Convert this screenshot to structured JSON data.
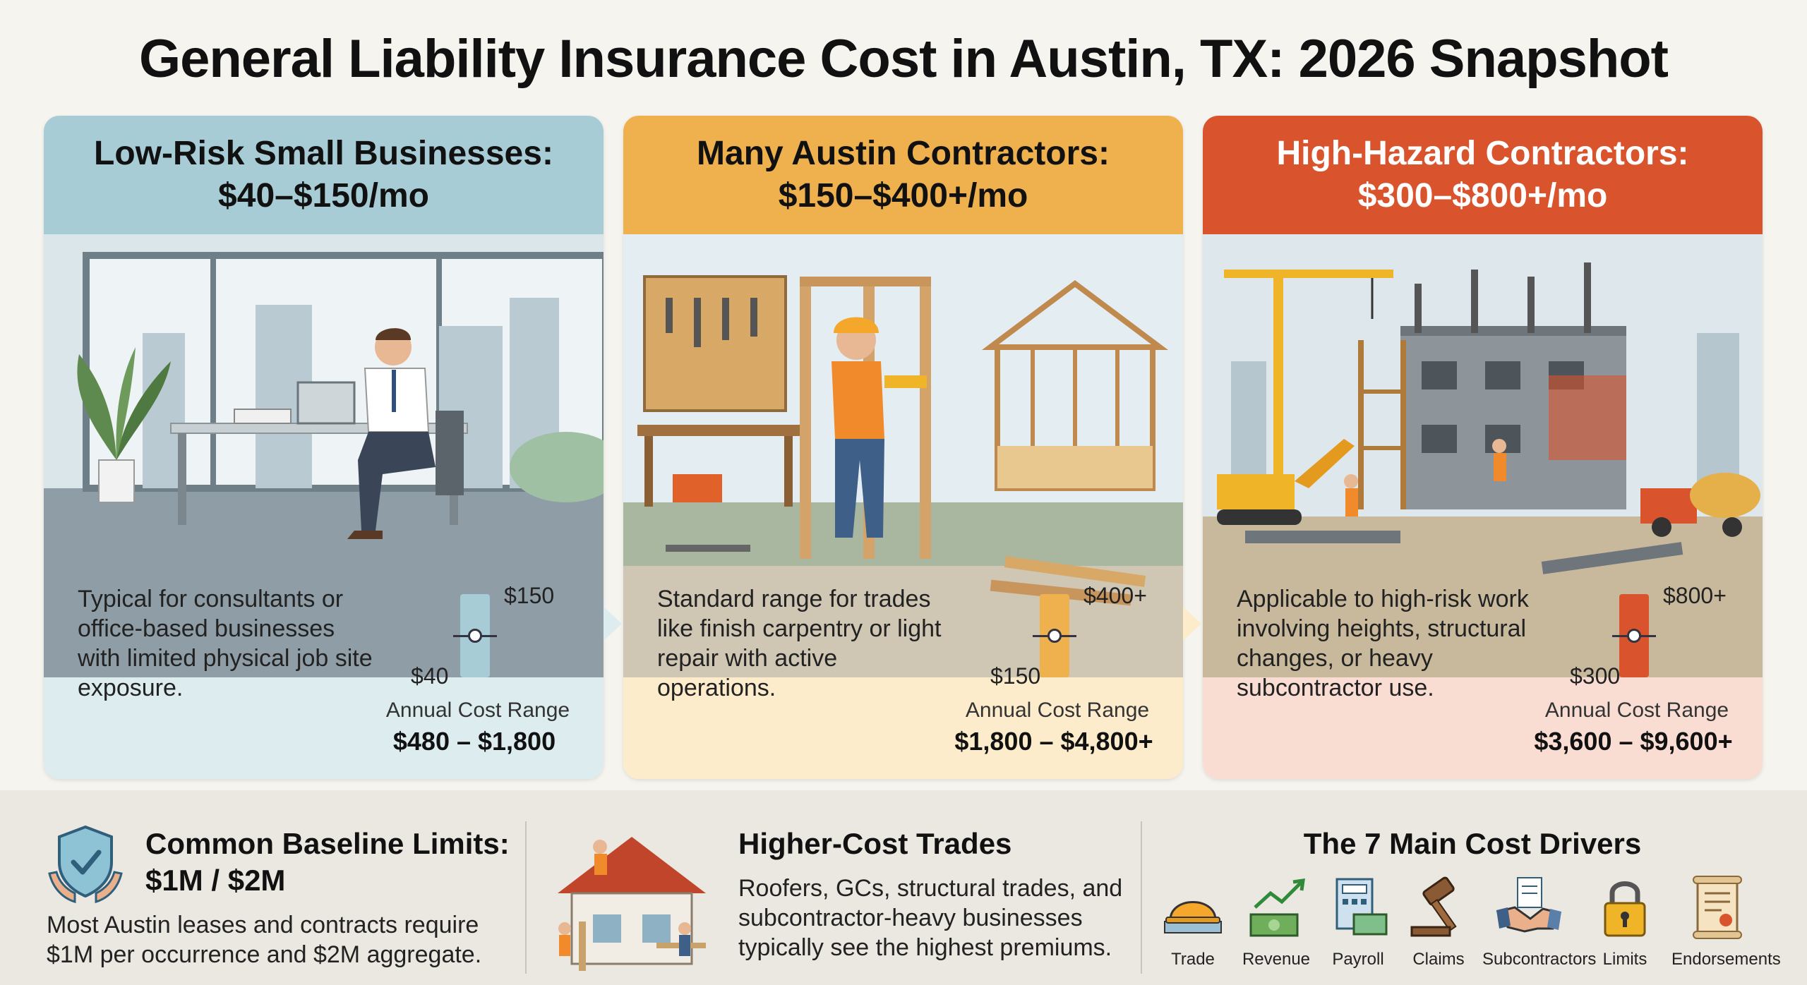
{
  "title": "General Liability Insurance Cost in Austin, TX: 2026 Snapshot",
  "tiers": [
    {
      "heading_line1": "Low-Risk Small Businesses:",
      "heading_line2": "$40–$150/mo",
      "description": "Typical for consultants or office-based businesses with limited physical job site exposure.",
      "gauge_high": "$150",
      "gauge_low": "$40",
      "annual_label": "Annual Cost Range",
      "annual_value": "$480 – $1,800",
      "illustration": "office-worker-at-desk",
      "accent_color": "#a7ccd5"
    },
    {
      "heading_line1": "Many Austin Contractors:",
      "heading_line2": "$150–$400+/mo",
      "description": "Standard range for trades like finish carpentry or light repair with active operations.",
      "gauge_high": "$400+",
      "gauge_low": "$150",
      "annual_label": "Annual Cost Range",
      "annual_value": "$1,800 – $4,800+",
      "illustration": "carpenter-framing-house",
      "accent_color": "#efb04e"
    },
    {
      "heading_line1": "High-Hazard Contractors:",
      "heading_line2": "$300–$800+/mo",
      "description": "Applicable to high-risk work involving heights, structural changes, or heavy subcontractor use.",
      "gauge_high": "$800+",
      "gauge_low": "$300",
      "annual_label": "Annual Cost Range",
      "annual_value": "$3,600 – $9,600+",
      "illustration": "construction-site-with-crane",
      "accent_color": "#d9542d"
    }
  ],
  "footer": {
    "limits": {
      "title_line1": "Common Baseline Limits:",
      "title_line2": "$1M / $2M",
      "text_line1": "Most Austin leases and contracts require",
      "text_line2": "$1M per occurrence and $2M aggregate.",
      "icon": "shield-check-hands-icon"
    },
    "trades": {
      "title": "Higher-Cost Trades",
      "text_line1": "Roofers, GCs, structural trades, and",
      "text_line2": "subcontractor-heavy businesses",
      "text_line3": "typically see the highest premiums.",
      "icon": "roofers-house-icon"
    },
    "drivers": {
      "title": "The 7 Main Cost Drivers",
      "items": [
        {
          "label": "Trade",
          "icon": "hard-hat-icon"
        },
        {
          "label": "Revenue",
          "icon": "money-growth-icon"
        },
        {
          "label": "Payroll",
          "icon": "payroll-calculator-icon"
        },
        {
          "label": "Claims",
          "icon": "gavel-icon"
        },
        {
          "label": "Subcontractors",
          "icon": "handshake-icon"
        },
        {
          "label": "Limits",
          "icon": "padlock-icon"
        },
        {
          "label": "Endorsements",
          "icon": "certificate-scroll-icon"
        }
      ]
    }
  }
}
